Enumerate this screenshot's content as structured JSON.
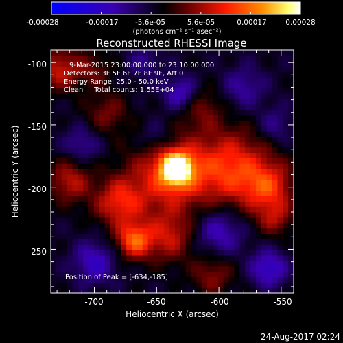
{
  "chart_data": {
    "type": "heatmap",
    "title": "Reconstructed RHESSI Image",
    "xlabel": "Heliocentric X (arcsec)",
    "ylabel": "Heliocentric Y (arcsec)",
    "xlim": [
      -735,
      -540
    ],
    "ylim": [
      -285,
      -90
    ],
    "x_ticks": [
      -700,
      -650,
      -600,
      -550
    ],
    "y_ticks": [
      -100,
      -150,
      -200,
      -250
    ],
    "colorbar": {
      "range": [
        -0.00028,
        0.00028
      ],
      "ticks": [
        "-0.00028",
        "-0.00017",
        "-5.6e-05",
        "5.6e-05",
        "0.00017",
        "0.00028"
      ],
      "unit_label": "(photons cm⁻² s⁻¹ asec⁻²)",
      "colormap": [
        "#0000ff",
        "#3a00b0",
        "#000000",
        "#8a0000",
        "#ff2000",
        "#ff8c00",
        "#ffff80",
        "#ffffff"
      ]
    },
    "annotations": [
      "9-Mar-2015 23:00:00.000 to 23:10:00.000",
      "Detectors: 3F 5F 6F 7F 8F 9F, Att 0",
      "Energy Range: 25.0 - 50.0 keV",
      "Clean     Total counts: 1.55E+04"
    ],
    "peak_label": "Position of Peak = [-634,-185]",
    "peak": [
      -634,
      -185
    ],
    "timestamp": "24-Aug-2017 02:24",
    "sources": [
      {
        "x": -634,
        "y": -185,
        "peak": 0.00028,
        "sigma": 9
      },
      {
        "x": -640,
        "y": -190,
        "peak": 0.00016,
        "sigma": 22
      },
      {
        "x": -590,
        "y": -185,
        "peak": 0.00017,
        "sigma": 22
      },
      {
        "x": -560,
        "y": -200,
        "peak": 0.00014,
        "sigma": 14
      },
      {
        "x": -680,
        "y": -212,
        "peak": 0.00015,
        "sigma": 14
      },
      {
        "x": -720,
        "y": -195,
        "peak": 0.00012,
        "sigma": 12
      },
      {
        "x": -728,
        "y": -105,
        "peak": 0.00013,
        "sigma": 12
      },
      {
        "x": -668,
        "y": -243,
        "peak": 0.00019,
        "sigma": 10
      },
      {
        "x": -640,
        "y": -240,
        "peak": 0.00012,
        "sigma": 14
      },
      {
        "x": -605,
        "y": -270,
        "peak": 9e-05,
        "sigma": 12
      },
      {
        "x": -555,
        "y": -225,
        "peak": 9e-05,
        "sigma": 10
      },
      {
        "x": -615,
        "y": -135,
        "peak": 8e-05,
        "sigma": 12
      },
      {
        "x": -690,
        "y": -140,
        "peak": 8e-05,
        "sigma": 12
      },
      {
        "x": -700,
        "y": -105,
        "peak": 7e-05,
        "sigma": 10
      },
      {
        "x": -630,
        "y": -125,
        "peak": -0.00012,
        "sigma": 10
      },
      {
        "x": -600,
        "y": -235,
        "peak": -0.00011,
        "sigma": 14
      },
      {
        "x": -560,
        "y": -265,
        "peak": -0.00013,
        "sigma": 10
      },
      {
        "x": -700,
        "y": -260,
        "peak": -0.00011,
        "sigma": 12
      },
      {
        "x": -580,
        "y": -120,
        "peak": -8e-05,
        "sigma": 12
      },
      {
        "x": -710,
        "y": -165,
        "peak": -8e-05,
        "sigma": 10
      },
      {
        "x": -650,
        "y": -160,
        "peak": -7e-05,
        "sigma": 10
      },
      {
        "x": -660,
        "y": -100,
        "peak": -6e-05,
        "sigma": 10
      },
      {
        "x": -555,
        "y": -150,
        "peak": -7e-05,
        "sigma": 10
      }
    ]
  }
}
